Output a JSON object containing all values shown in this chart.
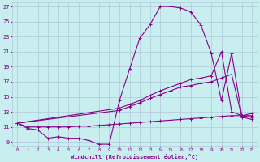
{
  "xlabel": "Windchill (Refroidissement éolien,°C)",
  "bg_color": "#c8eef0",
  "line_color": "#880088",
  "grid_color": "#b0c8d8",
  "xlim": [
    -0.5,
    23.5
  ],
  "ylim": [
    8.5,
    27.5
  ],
  "xticks": [
    0,
    1,
    2,
    3,
    4,
    5,
    6,
    7,
    8,
    9,
    10,
    11,
    12,
    13,
    14,
    15,
    16,
    17,
    18,
    19,
    20,
    21,
    22,
    23
  ],
  "yticks": [
    9,
    11,
    13,
    15,
    17,
    19,
    21,
    23,
    25,
    27
  ],
  "line1_x": [
    0,
    1,
    2,
    3,
    4,
    5,
    6,
    7,
    8,
    9,
    10,
    11,
    12,
    13,
    14,
    15,
    16,
    17,
    18,
    19,
    20,
    21,
    22,
    23
  ],
  "line1_y": [
    11.5,
    10.8,
    10.6,
    9.5,
    9.7,
    9.5,
    9.5,
    9.2,
    8.7,
    8.7,
    14.5,
    18.7,
    22.8,
    24.6,
    27.0,
    27.0,
    26.8,
    26.3,
    24.5,
    20.8,
    14.5,
    20.8,
    12.5,
    12.3
  ],
  "line2_x": [
    0,
    10,
    11,
    12,
    13,
    14,
    15,
    16,
    17,
    18,
    19,
    20,
    21,
    22,
    23
  ],
  "line2_y": [
    11.5,
    13.5,
    14.0,
    14.5,
    15.2,
    15.8,
    16.3,
    16.8,
    17.3,
    17.5,
    17.8,
    21.0,
    13.0,
    12.5,
    12.8
  ],
  "line3_x": [
    0,
    10,
    11,
    12,
    13,
    14,
    15,
    16,
    17,
    18,
    19,
    20,
    21,
    22,
    23
  ],
  "line3_y": [
    11.5,
    13.2,
    13.7,
    14.2,
    14.8,
    15.3,
    15.8,
    16.3,
    16.5,
    16.8,
    17.0,
    17.5,
    18.0,
    12.3,
    12.0
  ],
  "line4_x": [
    0,
    1,
    2,
    3,
    4,
    5,
    6,
    7,
    8,
    9,
    10,
    11,
    12,
    13,
    14,
    15,
    16,
    17,
    18,
    19,
    20,
    21,
    22,
    23
  ],
  "line4_y": [
    11.5,
    11.0,
    11.0,
    11.0,
    11.0,
    11.0,
    11.1,
    11.1,
    11.2,
    11.3,
    11.4,
    11.5,
    11.6,
    11.7,
    11.8,
    11.9,
    12.0,
    12.1,
    12.2,
    12.3,
    12.4,
    12.5,
    12.5,
    12.5
  ]
}
